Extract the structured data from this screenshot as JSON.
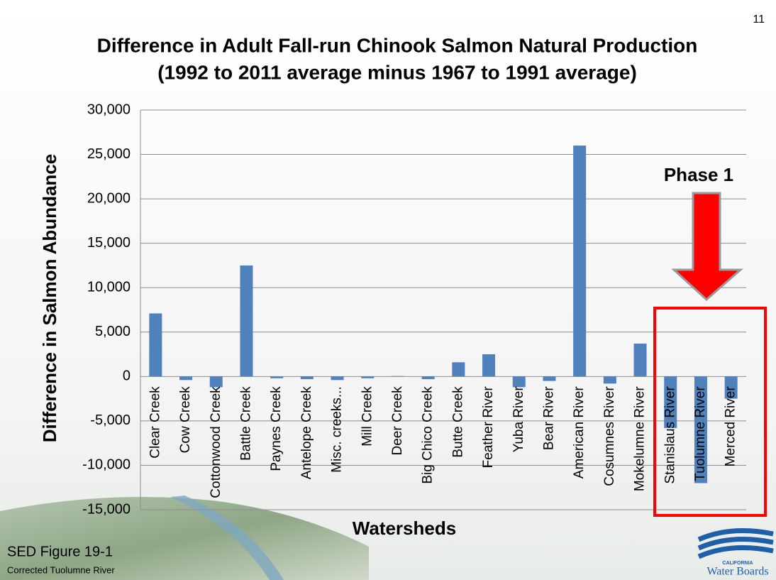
{
  "slide": {
    "page_number": "11",
    "annotation": "Phase 1",
    "caption": "SED Figure 19-1",
    "subcaption": "Corrected Tuolumne River",
    "logo_small": "CALIFORNIA",
    "logo": "Water Boards"
  },
  "chart_data": {
    "type": "bar",
    "title": [
      "Difference in Adult Fall-run Chinook Salmon Natural Production",
      "(1992 to 2011 average minus 1967 to 1991 average)"
    ],
    "y_label": "Difference in Salmon Abundance",
    "x_label": "Watersheds",
    "categories": [
      "Clear Creek",
      "Cow Creek",
      "Cottonwood Creek",
      "Battle Creek",
      "Paynes Creek",
      "Antelope Creek",
      "Misc. creeks...",
      "Mill Creek",
      "Deer Creek",
      "Big Chico Creek",
      "Butte Creek",
      "Feather River",
      "Yuba River",
      "Bear River",
      "American River",
      "Cosumnes River",
      "Mokelumne River",
      "Stanislaus River",
      "Tuolumne River",
      "Merced River"
    ],
    "values": [
      7100,
      -400,
      -1200,
      12500,
      -200,
      -300,
      -400,
      -200,
      50,
      -300,
      1600,
      2500,
      -1200,
      -500,
      26000,
      -800,
      3700,
      -5800,
      -12000,
      -2500
    ],
    "color": "#4f81bd",
    "ylim": [
      -15000,
      30000
    ],
    "yticks": [
      {
        "value": -15000,
        "label": "-15,000"
      },
      {
        "value": -10000,
        "label": "-10,000"
      },
      {
        "value": -5000,
        "label": "-5,000"
      },
      0,
      {
        "value": 5000,
        "label": "5,000"
      },
      {
        "value": 10000,
        "label": "10,000"
      },
      {
        "value": 15000,
        "label": "15,000"
      },
      {
        "value": 20000,
        "label": "20,000"
      },
      {
        "value": 25000,
        "label": "25,000"
      },
      {
        "value": 30000,
        "label": "30,000"
      }
    ],
    "grid": true
  }
}
